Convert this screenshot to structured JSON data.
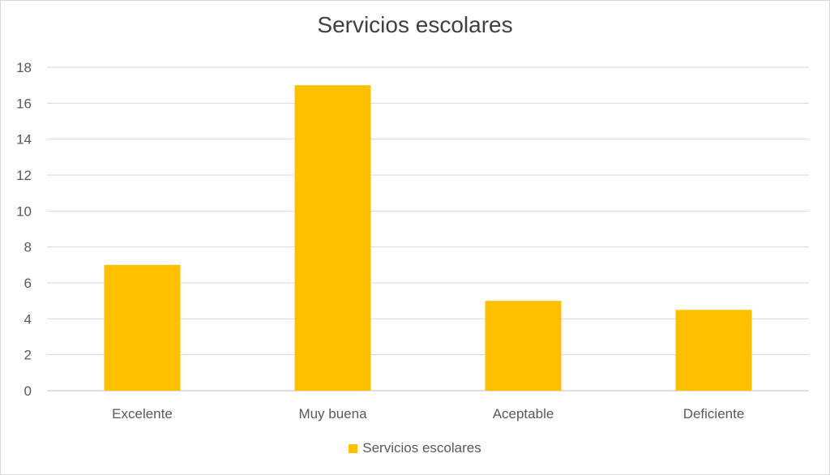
{
  "chart_data": {
    "type": "bar",
    "title": "Servicios escolares",
    "categories": [
      "Excelente",
      "Muy buena",
      "Aceptable",
      "Deficiente"
    ],
    "series": [
      {
        "name": "Servicios escolares",
        "values": [
          7,
          17,
          5,
          4.5
        ],
        "color": "#FFC000"
      }
    ],
    "ylim": [
      0,
      18
    ],
    "yticks": [
      0,
      2,
      4,
      6,
      8,
      10,
      12,
      14,
      16,
      18
    ],
    "grid": true,
    "legend_position": "bottom",
    "gridline_color": "#D9D9D9",
    "axis_color": "#BFBFBF"
  }
}
